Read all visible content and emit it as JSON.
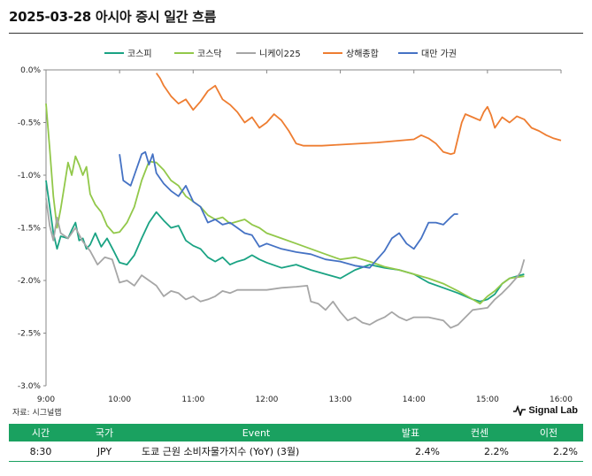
{
  "title": "2025-03-28 아시아 증시 일간 흐름",
  "source": "자료: 시그널랩",
  "brand": "Signal Lab",
  "events_table": {
    "headers": [
      "시간",
      "국가",
      "Event",
      "발표",
      "컨센",
      "이전"
    ],
    "rows": [
      {
        "time": "8:30",
        "country": "JPY",
        "event": "도쿄 근원 소비자물가지수 (YoY) (3월)",
        "actual": "2.4%",
        "consensus": "2.2%",
        "previous": "2.2%"
      }
    ]
  },
  "colors": {
    "header_bg": "#1aa160",
    "kospi": "#1aa383",
    "kosdaq": "#92c84a",
    "nikkei": "#a6a6a6",
    "shanghai": "#ee7d31",
    "taiwan": "#4572c4"
  },
  "chart_data": {
    "type": "line",
    "title": "",
    "xlabel": "",
    "ylabel": "",
    "x_ticks": [
      "9:00",
      "10:00",
      "11:00",
      "12:00",
      "13:00",
      "14:00",
      "15:00",
      "16:00"
    ],
    "y_ticks": [
      "0.0%",
      "-0.5%",
      "-1.0%",
      "-1.5%",
      "-2.0%",
      "-2.5%",
      "-3.0%"
    ],
    "xlim": [
      9.0,
      16.0
    ],
    "ylim": [
      -3.0,
      0.0
    ],
    "legend_position": "top-center",
    "series": [
      {
        "name": "코스피",
        "color": "#1aa383",
        "points": [
          [
            9.0,
            -1.05
          ],
          [
            9.05,
            -1.3
          ],
          [
            9.1,
            -1.55
          ],
          [
            9.15,
            -1.7
          ],
          [
            9.2,
            -1.58
          ],
          [
            9.3,
            -1.6
          ],
          [
            9.35,
            -1.52
          ],
          [
            9.4,
            -1.45
          ],
          [
            9.45,
            -1.62
          ],
          [
            9.5,
            -1.6
          ],
          [
            9.55,
            -1.7
          ],
          [
            9.6,
            -1.66
          ],
          [
            9.67,
            -1.55
          ],
          [
            9.75,
            -1.68
          ],
          [
            9.83,
            -1.6
          ],
          [
            9.92,
            -1.72
          ],
          [
            10.0,
            -1.83
          ],
          [
            10.1,
            -1.85
          ],
          [
            10.2,
            -1.76
          ],
          [
            10.3,
            -1.6
          ],
          [
            10.4,
            -1.45
          ],
          [
            10.5,
            -1.35
          ],
          [
            10.6,
            -1.43
          ],
          [
            10.7,
            -1.5
          ],
          [
            10.8,
            -1.48
          ],
          [
            10.9,
            -1.62
          ],
          [
            11.0,
            -1.67
          ],
          [
            11.1,
            -1.7
          ],
          [
            11.2,
            -1.78
          ],
          [
            11.3,
            -1.82
          ],
          [
            11.4,
            -1.78
          ],
          [
            11.5,
            -1.85
          ],
          [
            11.6,
            -1.82
          ],
          [
            11.7,
            -1.8
          ],
          [
            11.8,
            -1.76
          ],
          [
            11.9,
            -1.8
          ],
          [
            12.0,
            -1.83
          ],
          [
            12.2,
            -1.88
          ],
          [
            12.4,
            -1.85
          ],
          [
            12.6,
            -1.9
          ],
          [
            12.8,
            -1.94
          ],
          [
            13.0,
            -1.98
          ],
          [
            13.2,
            -1.9
          ],
          [
            13.4,
            -1.85
          ],
          [
            13.6,
            -1.88
          ],
          [
            13.8,
            -1.9
          ],
          [
            14.0,
            -1.94
          ],
          [
            14.2,
            -2.02
          ],
          [
            14.4,
            -2.07
          ],
          [
            14.6,
            -2.12
          ],
          [
            14.8,
            -2.18
          ],
          [
            14.9,
            -2.2
          ],
          [
            15.0,
            -2.18
          ],
          [
            15.1,
            -2.13
          ],
          [
            15.2,
            -2.03
          ],
          [
            15.3,
            -1.98
          ],
          [
            15.4,
            -1.96
          ],
          [
            15.5,
            -1.94
          ]
        ]
      },
      {
        "name": "코스닥",
        "color": "#92c84a",
        "points": [
          [
            9.0,
            -0.32
          ],
          [
            9.05,
            -0.75
          ],
          [
            9.1,
            -1.2
          ],
          [
            9.15,
            -1.5
          ],
          [
            9.2,
            -1.32
          ],
          [
            9.25,
            -1.1
          ],
          [
            9.3,
            -0.88
          ],
          [
            9.35,
            -1.0
          ],
          [
            9.4,
            -0.82
          ],
          [
            9.45,
            -0.9
          ],
          [
            9.5,
            -1.0
          ],
          [
            9.55,
            -0.92
          ],
          [
            9.6,
            -1.18
          ],
          [
            9.67,
            -1.28
          ],
          [
            9.75,
            -1.35
          ],
          [
            9.83,
            -1.48
          ],
          [
            9.92,
            -1.55
          ],
          [
            10.0,
            -1.54
          ],
          [
            10.1,
            -1.45
          ],
          [
            10.2,
            -1.3
          ],
          [
            10.3,
            -1.05
          ],
          [
            10.4,
            -0.87
          ],
          [
            10.5,
            -0.88
          ],
          [
            10.6,
            -0.95
          ],
          [
            10.7,
            -1.05
          ],
          [
            10.8,
            -1.1
          ],
          [
            10.9,
            -1.2
          ],
          [
            11.0,
            -1.25
          ],
          [
            11.1,
            -1.3
          ],
          [
            11.2,
            -1.38
          ],
          [
            11.3,
            -1.42
          ],
          [
            11.4,
            -1.4
          ],
          [
            11.5,
            -1.46
          ],
          [
            11.6,
            -1.44
          ],
          [
            11.7,
            -1.42
          ],
          [
            11.8,
            -1.47
          ],
          [
            11.9,
            -1.5
          ],
          [
            12.0,
            -1.55
          ],
          [
            12.2,
            -1.6
          ],
          [
            12.4,
            -1.65
          ],
          [
            12.6,
            -1.7
          ],
          [
            12.8,
            -1.75
          ],
          [
            13.0,
            -1.8
          ],
          [
            13.2,
            -1.78
          ],
          [
            13.4,
            -1.82
          ],
          [
            13.6,
            -1.87
          ],
          [
            13.8,
            -1.9
          ],
          [
            14.0,
            -1.94
          ],
          [
            14.2,
            -1.98
          ],
          [
            14.4,
            -2.03
          ],
          [
            14.6,
            -2.1
          ],
          [
            14.8,
            -2.18
          ],
          [
            14.9,
            -2.22
          ],
          [
            15.0,
            -2.15
          ],
          [
            15.1,
            -2.1
          ],
          [
            15.2,
            -2.03
          ],
          [
            15.3,
            -1.98
          ],
          [
            15.4,
            -1.97
          ],
          [
            15.5,
            -1.96
          ]
        ]
      },
      {
        "name": "니케이225",
        "color": "#a6a6a6",
        "points": [
          [
            9.0,
            -1.22
          ],
          [
            9.05,
            -1.48
          ],
          [
            9.1,
            -1.62
          ],
          [
            9.15,
            -1.4
          ],
          [
            9.2,
            -1.55
          ],
          [
            9.3,
            -1.6
          ],
          [
            9.4,
            -1.5
          ],
          [
            9.5,
            -1.63
          ],
          [
            9.6,
            -1.72
          ],
          [
            9.7,
            -1.85
          ],
          [
            9.8,
            -1.78
          ],
          [
            9.9,
            -1.8
          ],
          [
            10.0,
            -2.02
          ],
          [
            10.1,
            -2.0
          ],
          [
            10.2,
            -2.05
          ],
          [
            10.3,
            -1.95
          ],
          [
            10.4,
            -2.0
          ],
          [
            10.5,
            -2.05
          ],
          [
            10.6,
            -2.15
          ],
          [
            10.7,
            -2.1
          ],
          [
            10.8,
            -2.12
          ],
          [
            10.9,
            -2.18
          ],
          [
            11.0,
            -2.15
          ],
          [
            11.1,
            -2.2
          ],
          [
            11.2,
            -2.18
          ],
          [
            11.3,
            -2.15
          ],
          [
            11.4,
            -2.1
          ],
          [
            11.5,
            -2.12
          ],
          [
            11.6,
            -2.09
          ],
          [
            11.8,
            -2.09
          ],
          [
            12.0,
            -2.09
          ],
          [
            12.2,
            -2.07
          ],
          [
            12.4,
            -2.06
          ],
          [
            12.55,
            -2.05
          ],
          [
            12.6,
            -2.2
          ],
          [
            12.7,
            -2.22
          ],
          [
            12.8,
            -2.28
          ],
          [
            12.9,
            -2.2
          ],
          [
            13.0,
            -2.3
          ],
          [
            13.1,
            -2.38
          ],
          [
            13.2,
            -2.35
          ],
          [
            13.3,
            -2.4
          ],
          [
            13.4,
            -2.42
          ],
          [
            13.5,
            -2.38
          ],
          [
            13.6,
            -2.35
          ],
          [
            13.7,
            -2.3
          ],
          [
            13.8,
            -2.35
          ],
          [
            13.9,
            -2.38
          ],
          [
            14.0,
            -2.35
          ],
          [
            14.2,
            -2.35
          ],
          [
            14.4,
            -2.38
          ],
          [
            14.5,
            -2.45
          ],
          [
            14.6,
            -2.42
          ],
          [
            14.8,
            -2.28
          ],
          [
            15.0,
            -2.26
          ],
          [
            15.1,
            -2.18
          ],
          [
            15.2,
            -2.12
          ],
          [
            15.3,
            -2.05
          ],
          [
            15.4,
            -1.97
          ],
          [
            15.45,
            -1.92
          ],
          [
            15.5,
            -1.8
          ]
        ]
      },
      {
        "name": "상해종합",
        "color": "#ee7d31",
        "points": [
          [
            10.5,
            -0.03
          ],
          [
            10.55,
            -0.08
          ],
          [
            10.6,
            -0.15
          ],
          [
            10.7,
            -0.25
          ],
          [
            10.8,
            -0.32
          ],
          [
            10.9,
            -0.28
          ],
          [
            11.0,
            -0.38
          ],
          [
            11.1,
            -0.3
          ],
          [
            11.2,
            -0.2
          ],
          [
            11.3,
            -0.15
          ],
          [
            11.4,
            -0.28
          ],
          [
            11.5,
            -0.33
          ],
          [
            11.6,
            -0.4
          ],
          [
            11.7,
            -0.5
          ],
          [
            11.8,
            -0.45
          ],
          [
            11.9,
            -0.55
          ],
          [
            12.0,
            -0.5
          ],
          [
            12.1,
            -0.42
          ],
          [
            12.2,
            -0.48
          ],
          [
            12.3,
            -0.58
          ],
          [
            12.4,
            -0.7
          ],
          [
            12.5,
            -0.72
          ],
          [
            12.6,
            -0.72
          ],
          [
            12.75,
            -0.72
          ],
          [
            13.0,
            -0.71
          ],
          [
            13.5,
            -0.69
          ],
          [
            14.0,
            -0.66
          ],
          [
            14.1,
            -0.62
          ],
          [
            14.2,
            -0.65
          ],
          [
            14.3,
            -0.7
          ],
          [
            14.4,
            -0.78
          ],
          [
            14.5,
            -0.8
          ],
          [
            14.55,
            -0.79
          ],
          [
            14.65,
            -0.5
          ],
          [
            14.7,
            -0.42
          ],
          [
            14.8,
            -0.45
          ],
          [
            14.9,
            -0.48
          ],
          [
            14.95,
            -0.4
          ],
          [
            15.0,
            -0.35
          ],
          [
            15.05,
            -0.43
          ],
          [
            15.1,
            -0.55
          ],
          [
            15.2,
            -0.45
          ],
          [
            15.3,
            -0.5
          ],
          [
            15.4,
            -0.44
          ],
          [
            15.5,
            -0.47
          ],
          [
            15.6,
            -0.55
          ],
          [
            15.7,
            -0.58
          ],
          [
            15.8,
            -0.62
          ],
          [
            15.9,
            -0.65
          ],
          [
            16.0,
            -0.67
          ]
        ]
      },
      {
        "name": "대만 가권",
        "color": "#4572c4",
        "points": [
          [
            10.0,
            -0.8
          ],
          [
            10.05,
            -1.05
          ],
          [
            10.15,
            -1.1
          ],
          [
            10.2,
            -1.0
          ],
          [
            10.3,
            -0.8
          ],
          [
            10.35,
            -0.78
          ],
          [
            10.4,
            -0.9
          ],
          [
            10.45,
            -0.8
          ],
          [
            10.5,
            -0.98
          ],
          [
            10.6,
            -1.08
          ],
          [
            10.7,
            -1.15
          ],
          [
            10.8,
            -1.2
          ],
          [
            10.9,
            -1.1
          ],
          [
            11.0,
            -1.25
          ],
          [
            11.1,
            -1.3
          ],
          [
            11.2,
            -1.45
          ],
          [
            11.3,
            -1.42
          ],
          [
            11.4,
            -1.47
          ],
          [
            11.5,
            -1.45
          ],
          [
            11.6,
            -1.5
          ],
          [
            11.7,
            -1.55
          ],
          [
            11.8,
            -1.57
          ],
          [
            11.9,
            -1.68
          ],
          [
            12.0,
            -1.65
          ],
          [
            12.2,
            -1.7
          ],
          [
            12.4,
            -1.73
          ],
          [
            12.6,
            -1.75
          ],
          [
            12.8,
            -1.8
          ],
          [
            13.0,
            -1.82
          ],
          [
            13.2,
            -1.86
          ],
          [
            13.4,
            -1.88
          ],
          [
            13.5,
            -1.8
          ],
          [
            13.6,
            -1.72
          ],
          [
            13.7,
            -1.6
          ],
          [
            13.8,
            -1.55
          ],
          [
            13.9,
            -1.65
          ],
          [
            14.0,
            -1.7
          ],
          [
            14.1,
            -1.6
          ],
          [
            14.2,
            -1.45
          ],
          [
            14.3,
            -1.45
          ],
          [
            14.4,
            -1.47
          ],
          [
            14.5,
            -1.4
          ],
          [
            14.55,
            -1.37
          ],
          [
            14.6,
            -1.37
          ]
        ]
      }
    ]
  }
}
